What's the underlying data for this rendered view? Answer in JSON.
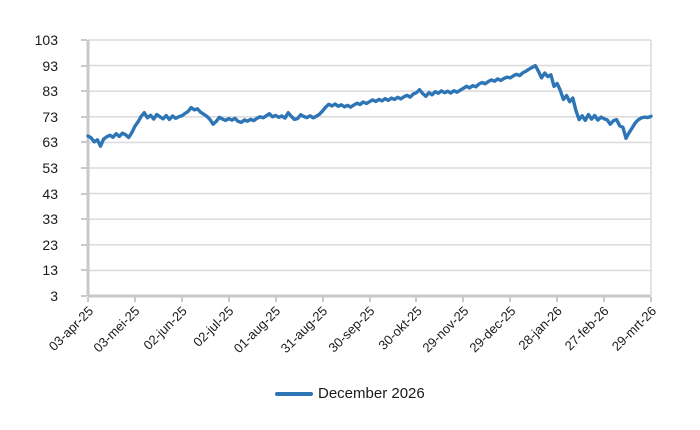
{
  "chart_data": {
    "type": "line",
    "title": "",
    "grid": "horizontal",
    "legend_position": "bottom",
    "colors": {
      "series": "#2E75B6",
      "gridline": "#dcdcdc",
      "axis": "#c9c9c9",
      "text": "#1a1a1a",
      "background": "#ffffff"
    },
    "y": {
      "min": 3,
      "max": 103,
      "ticks": [
        103,
        93,
        83,
        73,
        63,
        53,
        43,
        33,
        23,
        13,
        3
      ]
    },
    "x": {
      "total_days": 360,
      "tick_labels": [
        "03-apr-25",
        "03-mei-25",
        "02-jun-25",
        "02-jul-25",
        "01-aug-25",
        "31-aug-25",
        "30-sep-25",
        "30-okt-25",
        "29-nov-25",
        "29-dec-25",
        "28-jan-26",
        "27-feb-26",
        "29-mrt-26"
      ]
    },
    "series": [
      {
        "name": "December 2026",
        "color": "#2E75B6",
        "x_step_days": 2,
        "values": [
          65.5,
          64.8,
          63.2,
          64.0,
          61.5,
          64.3,
          65.2,
          65.8,
          65.0,
          66.4,
          65.3,
          66.6,
          66.0,
          64.9,
          66.8,
          69.3,
          71.0,
          73.2,
          74.6,
          72.6,
          73.6,
          72.1,
          73.9,
          73.0,
          72.2,
          73.5,
          72.0,
          73.3,
          72.4,
          73.0,
          73.4,
          74.3,
          75.1,
          76.6,
          75.7,
          76.1,
          74.8,
          74.0,
          73.2,
          71.9,
          70.1,
          71.2,
          72.8,
          72.1,
          71.6,
          72.3,
          71.7,
          72.4,
          71.2,
          70.8,
          71.8,
          71.3,
          72.0,
          71.5,
          72.4,
          73.0,
          72.6,
          73.4,
          74.2,
          73.0,
          73.5,
          72.8,
          73.3,
          72.5,
          74.6,
          73.2,
          72.0,
          72.3,
          73.8,
          73.1,
          72.7,
          73.4,
          72.6,
          73.2,
          74.0,
          75.3,
          76.8,
          77.9,
          77.2,
          78.0,
          77.1,
          77.7,
          76.9,
          77.5,
          76.8,
          77.6,
          78.3,
          77.8,
          78.8,
          78.2,
          78.9,
          79.6,
          79.0,
          79.8,
          79.2,
          80.1,
          79.4,
          80.3,
          79.8,
          80.6,
          80.0,
          80.8,
          81.4,
          80.7,
          81.9,
          82.4,
          83.6,
          82.1,
          81.0,
          82.4,
          81.6,
          82.8,
          82.2,
          83.1,
          82.4,
          83.0,
          82.3,
          83.2,
          82.6,
          83.4,
          84.1,
          84.9,
          84.3,
          85.2,
          84.7,
          85.8,
          86.4,
          85.9,
          86.8,
          87.4,
          86.9,
          87.8,
          87.2,
          88.0,
          88.5,
          88.2,
          89.0,
          89.6,
          89.1,
          90.2,
          90.8,
          91.6,
          92.3,
          93.0,
          90.8,
          88.2,
          90.1,
          88.7,
          89.4,
          84.9,
          86.0,
          83.3,
          79.8,
          81.3,
          78.9,
          80.3,
          75.5,
          71.9,
          73.4,
          71.6,
          73.9,
          72.1,
          73.5,
          71.7,
          72.9,
          72.2,
          71.8,
          70.1,
          71.5,
          71.9,
          69.5,
          68.9,
          64.6,
          66.8,
          68.7,
          70.7,
          71.9,
          72.6,
          72.9,
          72.7,
          73.2
        ]
      }
    ]
  }
}
